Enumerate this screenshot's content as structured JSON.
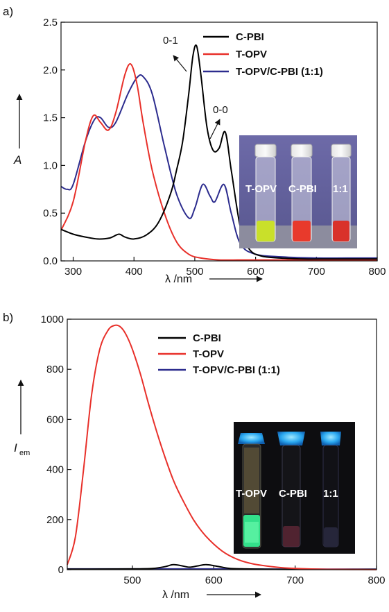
{
  "chart_data": [
    {
      "type": "line",
      "panel_label": "a)",
      "xlabel": "λ /nm",
      "ylabel": "A",
      "xlim": [
        280,
        800
      ],
      "ylim": [
        0,
        2.5
      ],
      "xticks": [
        300,
        400,
        500,
        600,
        700,
        800
      ],
      "yticks": [
        0.0,
        0.5,
        1.0,
        1.5,
        2.0,
        2.5
      ],
      "xtick_labels": [
        "300",
        "400",
        "500",
        "600",
        "700",
        "800"
      ],
      "ytick_labels": [
        "0.0",
        "0.5",
        "1.0",
        "1.5",
        "2.0",
        "2.5"
      ],
      "legend_position": "top-right",
      "annotations": [
        "0-1",
        "0-0"
      ],
      "inset_labels": [
        "T-OPV",
        "C-PBI",
        "1:1"
      ],
      "series": [
        {
          "name": "C-PBI",
          "color": "#000000",
          "x": [
            280,
            300,
            320,
            340,
            360,
            375,
            385,
            400,
            420,
            440,
            460,
            470,
            480,
            490,
            497,
            503,
            510,
            520,
            530,
            540,
            550,
            560,
            575,
            590,
            610,
            640,
            680,
            720,
            760,
            800
          ],
          "y": [
            0.33,
            0.28,
            0.25,
            0.23,
            0.24,
            0.28,
            0.25,
            0.23,
            0.27,
            0.4,
            0.7,
            0.95,
            1.25,
            1.75,
            2.15,
            2.25,
            1.95,
            1.4,
            1.16,
            1.18,
            1.35,
            0.95,
            0.35,
            0.12,
            0.05,
            0.03,
            0.02,
            0.02,
            0.02,
            0.02
          ]
        },
        {
          "name": "T-OPV",
          "color": "#e8302a",
          "x": [
            280,
            300,
            320,
            333,
            345,
            358,
            370,
            385,
            395,
            405,
            415,
            430,
            450,
            470,
            490,
            510,
            540,
            570,
            600,
            650,
            700,
            750,
            800
          ],
          "y": [
            0.32,
            0.62,
            1.25,
            1.52,
            1.45,
            1.37,
            1.55,
            1.95,
            2.06,
            1.85,
            1.45,
            0.95,
            0.5,
            0.2,
            0.07,
            0.03,
            0.01,
            0.01,
            0.01,
            0.01,
            0.01,
            0.01,
            0.01
          ]
        },
        {
          "name": "T-OPV/C-PBI (1:1)",
          "color": "#2c2c8e",
          "x": [
            280,
            290,
            300,
            320,
            335,
            345,
            358,
            370,
            390,
            405,
            415,
            430,
            450,
            470,
            490,
            500,
            513,
            525,
            533,
            548,
            560,
            575,
            600,
            650,
            700,
            750,
            800
          ],
          "y": [
            0.78,
            0.75,
            0.8,
            1.25,
            1.48,
            1.5,
            1.4,
            1.45,
            1.75,
            1.92,
            1.93,
            1.75,
            1.2,
            0.7,
            0.45,
            0.55,
            0.8,
            0.68,
            0.62,
            0.8,
            0.5,
            0.18,
            0.07,
            0.04,
            0.03,
            0.03,
            0.03
          ]
        }
      ]
    },
    {
      "type": "line",
      "panel_label": "b)",
      "xlabel": "λ /nm",
      "ylabel": "I",
      "ylabel_sub": "em",
      "xlim": [
        420,
        800
      ],
      "ylim": [
        0,
        1000
      ],
      "xticks": [
        500,
        600,
        700,
        800
      ],
      "yticks": [
        0,
        200,
        400,
        600,
        800,
        1000
      ],
      "xtick_labels": [
        "500",
        "600",
        "700",
        "800"
      ],
      "ytick_labels": [
        "0",
        "200",
        "400",
        "600",
        "800",
        "1000"
      ],
      "legend_position": "top-right",
      "inset_labels": [
        "T-OPV",
        "C-PBI",
        "1:1"
      ],
      "series": [
        {
          "name": "C-PBI",
          "color": "#000000",
          "x": [
            420,
            500,
            525,
            540,
            550,
            560,
            570,
            580,
            590,
            600,
            610,
            620,
            640,
            660,
            700,
            800
          ],
          "y": [
            2,
            3,
            5,
            12,
            20,
            16,
            10,
            15,
            20,
            16,
            10,
            5,
            3,
            2,
            1,
            1
          ]
        },
        {
          "name": "T-OPV",
          "color": "#e8302a",
          "x": [
            420,
            430,
            440,
            450,
            460,
            470,
            478,
            485,
            492,
            500,
            510,
            520,
            530,
            540,
            550,
            560,
            575,
            590,
            610,
            630,
            650,
            680,
            700,
            730,
            760,
            800
          ],
          "y": [
            20,
            130,
            400,
            700,
            880,
            955,
            975,
            970,
            940,
            880,
            780,
            660,
            550,
            450,
            360,
            290,
            200,
            135,
            75,
            40,
            22,
            9,
            5,
            2,
            1,
            0
          ]
        },
        {
          "name": "T-OPV/C-PBI (1:1)",
          "color": "#2c2c8e",
          "x": [
            420,
            500,
            600,
            700,
            800
          ],
          "y": [
            3,
            3,
            3,
            2,
            2
          ]
        }
      ]
    }
  ]
}
